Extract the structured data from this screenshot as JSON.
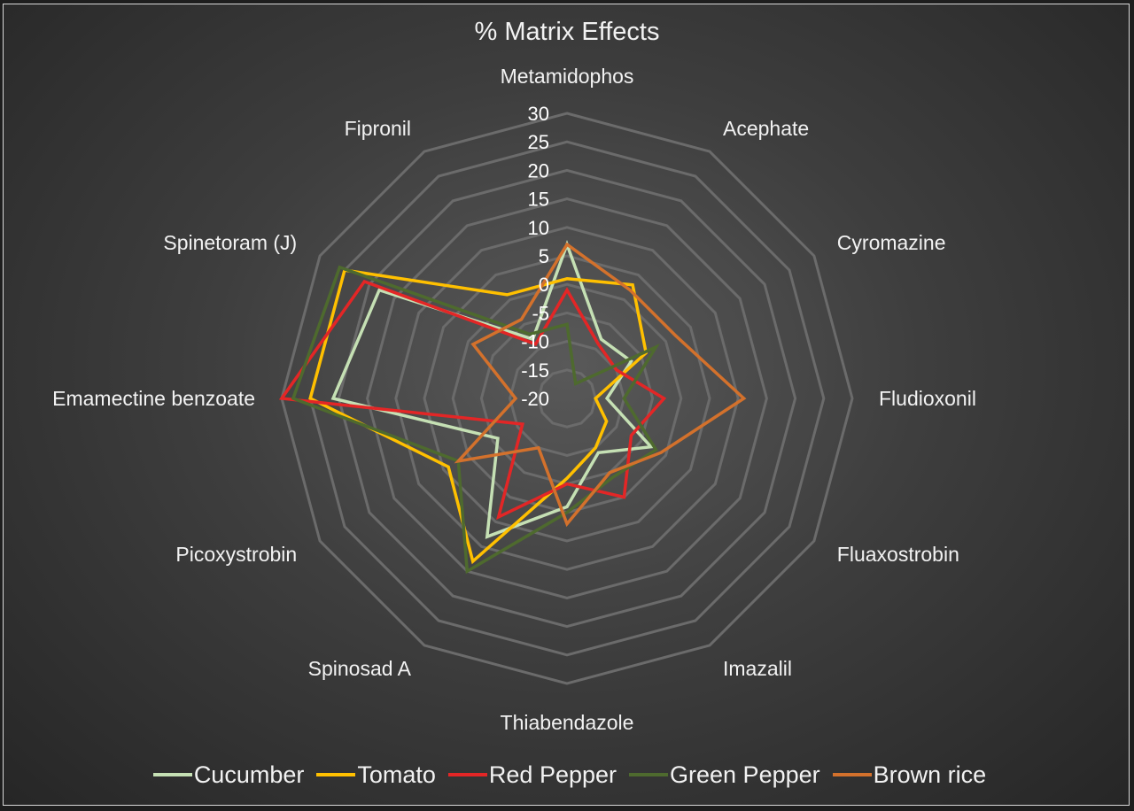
{
  "chart_data": {
    "type": "radar",
    "title": "% Matrix Effects",
    "categories": [
      "Metamidophos",
      "Acephate",
      "Cyromazine",
      "Fludioxonil",
      "Fluaxostrobin",
      "Imazalil",
      "Thiabendazole",
      "Spinosad A",
      "Picoxystrobin",
      "Emamectine benzoate",
      "Spinetoram (J)",
      "Fipronil"
    ],
    "rlim": [
      -20,
      30
    ],
    "ticks": [
      30,
      25,
      20,
      15,
      10,
      5,
      0,
      -5,
      -10,
      -15,
      -20
    ],
    "grid": true,
    "legend_position": "bottom",
    "series": [
      {
        "name": "Cucumber",
        "color": "#c5e0b4",
        "values": [
          7,
          -8,
          -7,
          -13,
          -3,
          -9,
          -1,
          8,
          -6,
          21,
          18,
          -8
        ]
      },
      {
        "name": "Tomato",
        "color": "#ffc000",
        "values": [
          1,
          3,
          -4,
          -15,
          -12,
          -10,
          -6,
          13,
          4,
          25,
          25,
          1
        ]
      },
      {
        "name": "Red Pepper",
        "color": "#e32626",
        "values": [
          -1,
          -9,
          -10,
          -3,
          -7,
          0,
          -5,
          4,
          -11,
          30,
          21,
          -9
        ]
      },
      {
        "name": "Green Pepper",
        "color": "#4e6a2e",
        "values": [
          -7,
          -17,
          -2,
          -10,
          -2,
          -4,
          0,
          15,
          2,
          28,
          26,
          -7
        ]
      },
      {
        "name": "Brown rice",
        "color": "#d3712c",
        "values": [
          7,
          2,
          2,
          11,
          -1,
          -5,
          2,
          -10,
          2,
          -11,
          -1,
          -4
        ]
      }
    ]
  }
}
